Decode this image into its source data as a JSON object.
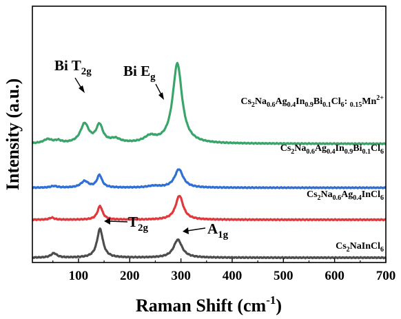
{
  "chart_data": {
    "type": "line",
    "xlabel": "Raman Shift (cm",
    "xlabel_sup": "-1",
    "xlabel_end": ")",
    "ylabel": "Intensity (a.u.)",
    "xlim": [
      10,
      700
    ],
    "x_ticks": [
      "100",
      "200",
      "300",
      "400",
      "500",
      "600",
      "700"
    ],
    "y_ticks_shown": false,
    "grid": false,
    "legend": "labels placed at right end of each offset curve",
    "annotations": {
      "bi_t2g": {
        "base": "Bi T",
        "sub": "2g"
      },
      "bi_eg": {
        "base": "Bi E",
        "sub": "g"
      },
      "t2g": {
        "base": "T",
        "sub": "2g"
      },
      "a1g": {
        "base": "A",
        "sub": "1g"
      }
    },
    "series": [
      {
        "key": "s1",
        "name_parts": [
          [
            "Cs",
            ""
          ],
          [
            "2",
            "sub"
          ],
          [
            "NaInCl",
            ""
          ],
          [
            "6",
            "sub"
          ]
        ],
        "color": "#4d4d4d",
        "offset": 0.0,
        "peaks": [
          [
            52,
            0.11,
            7
          ],
          [
            142,
            0.72,
            7
          ],
          [
            294,
            0.45,
            10
          ]
        ]
      },
      {
        "key": "s2",
        "name_parts": [
          [
            "Cs",
            ""
          ],
          [
            "2",
            "sub"
          ],
          [
            "Na",
            ""
          ],
          [
            "0.6",
            "sub"
          ],
          [
            "Ag",
            ""
          ],
          [
            "0.4",
            "sub"
          ],
          [
            "InCl",
            ""
          ],
          [
            "6",
            "sub"
          ]
        ],
        "color": "#e0383b",
        "offset": 0.95,
        "peaks": [
          [
            48,
            0.05,
            6
          ],
          [
            142,
            0.34,
            6
          ],
          [
            297,
            0.6,
            9
          ]
        ]
      },
      {
        "key": "s3",
        "name_parts": [
          [
            "Cs",
            ""
          ],
          [
            "2",
            "sub"
          ],
          [
            "Na",
            ""
          ],
          [
            "0.6",
            "sub"
          ],
          [
            "Ag",
            ""
          ],
          [
            "0.4",
            "sub"
          ],
          [
            "In",
            ""
          ],
          [
            "0.9",
            "sub"
          ],
          [
            "Bi",
            ""
          ],
          [
            "0.1",
            "sub"
          ],
          [
            "Cl",
            ""
          ],
          [
            "6",
            "sub"
          ]
        ],
        "color": "#2f6fd6",
        "offset": 1.75,
        "peaks": [
          [
            52,
            0.04,
            8
          ],
          [
            112,
            0.16,
            9
          ],
          [
            141,
            0.31,
            6
          ],
          [
            247,
            0.04,
            15
          ],
          [
            296,
            0.46,
            10
          ]
        ]
      },
      {
        "key": "s4",
        "name_parts": [
          [
            "Cs",
            ""
          ],
          [
            "2",
            "sub"
          ],
          [
            "Na",
            ""
          ],
          [
            "0.6",
            "sub"
          ],
          [
            "Ag",
            ""
          ],
          [
            "0.4",
            "sub"
          ],
          [
            "In",
            ""
          ],
          [
            "0.9",
            "sub"
          ],
          [
            "Bi",
            ""
          ],
          [
            "0.1",
            "sub"
          ],
          [
            "Cl",
            ""
          ],
          [
            "6",
            "sub"
          ],
          [
            ": ",
            ""
          ],
          [
            "0.15",
            "sub"
          ],
          [
            "Mn",
            ""
          ],
          [
            "2+",
            "sup"
          ]
        ],
        "color": "#3aa56a",
        "offset": 2.85,
        "peaks": [
          [
            40,
            0.1,
            10
          ],
          [
            60,
            0.06,
            8
          ],
          [
            112,
            0.48,
            10
          ],
          [
            141,
            0.44,
            8
          ],
          [
            172,
            0.1,
            12
          ],
          [
            240,
            0.15,
            14
          ],
          [
            293,
            2.0,
            11
          ]
        ]
      }
    ]
  }
}
